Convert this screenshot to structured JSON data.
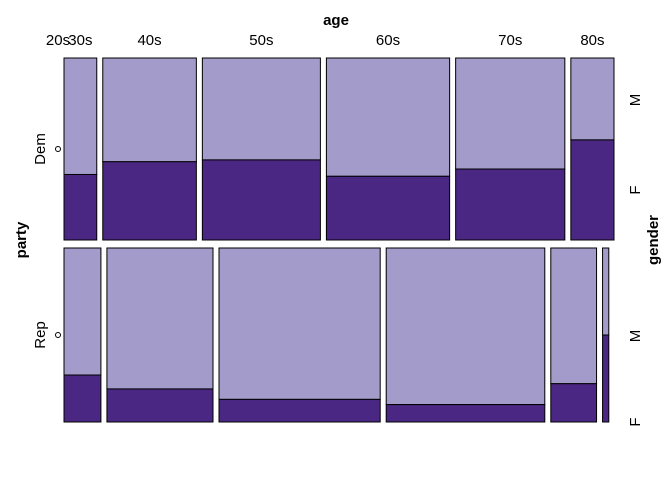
{
  "chart_data": {
    "type": "mosaic",
    "xlabel": "age",
    "ylabel": "party",
    "zlabel": "gender",
    "age_groups": [
      "20s",
      "30s",
      "40s",
      "50s",
      "60s",
      "70s",
      "80s"
    ],
    "parties": [
      "Dem",
      "Rep"
    ],
    "genders": [
      "M",
      "F"
    ],
    "party_share": [
      0.5,
      0.5
    ],
    "age_share_by_party": {
      "Dem": [
        0.0,
        0.063,
        0.18,
        0.227,
        0.237,
        0.21,
        0.083
      ],
      "Rep": [
        0.0,
        0.071,
        0.204,
        0.31,
        0.305,
        0.088,
        0.012
      ]
    },
    "female_share": {
      "Dem": [
        0.5,
        0.36,
        0.43,
        0.44,
        0.35,
        0.39,
        0.55
      ],
      "Rep": [
        0.5,
        0.27,
        0.19,
        0.13,
        0.1,
        0.22,
        0.5
      ]
    },
    "colors": {
      "M": "#a39bca",
      "F": "#4b2784"
    }
  }
}
